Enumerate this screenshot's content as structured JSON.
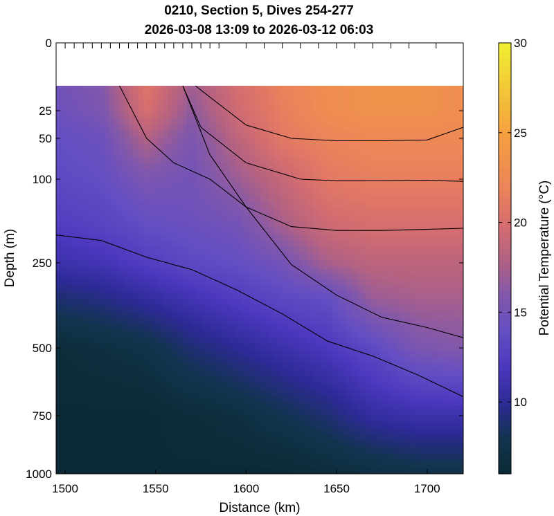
{
  "chart_data": {
    "type": "heatmap",
    "title": [
      "0210, Section 5, Dives 254-277",
      "2026-03-08 13:09 to 2026-03-12 06:03"
    ],
    "xlabel": "Distance (km)",
    "ylabel": "Depth (m)",
    "xlim": [
      1495,
      1720
    ],
    "x_ticks": [
      1500,
      1550,
      1600,
      1650,
      1700
    ],
    "y_scale": "stretched (0 at top, 1000 at bottom)",
    "y_ticks": [
      0,
      25,
      50,
      100,
      250,
      500,
      750,
      1000
    ],
    "dive_markers": [
      1500,
      1505,
      1510,
      1515,
      1520,
      1525,
      1530,
      1535,
      1540,
      1545,
      1550,
      1555,
      1560,
      1565,
      1570,
      1575,
      1580,
      1585,
      1600,
      1610,
      1620,
      1630,
      1640,
      1650,
      1660,
      1670,
      1680,
      1690,
      1705
    ],
    "data_top_depth": 12,
    "colorbar": {
      "label": "Potential Temperature (°C)",
      "range": [
        6,
        30
      ],
      "ticks": [
        10,
        15,
        20,
        25,
        30
      ]
    },
    "colors": {
      "cold": "#0c2a35",
      "mid": "#4b36b8",
      "warm": "#d96b6b",
      "hot": "#f5a040",
      "max": "#f0f030"
    },
    "temperature_field": {
      "x": [
        1495,
        1520,
        1545,
        1570,
        1595,
        1620,
        1645,
        1670,
        1695,
        1720
      ],
      "depth": [
        12,
        25,
        50,
        100,
        180,
        250,
        350,
        500,
        750,
        1000
      ],
      "values": [
        [
          15.0,
          16.0,
          21.0,
          17.5,
          20.0,
          22.0,
          23.0,
          23.5,
          23.5,
          23.0
        ],
        [
          14.5,
          15.5,
          20.0,
          16.5,
          19.5,
          21.5,
          23.0,
          23.5,
          23.5,
          23.0
        ],
        [
          14.0,
          14.5,
          18.0,
          15.5,
          18.5,
          21.0,
          22.0,
          22.5,
          22.5,
          22.5
        ],
        [
          13.5,
          14.0,
          15.5,
          15.0,
          17.0,
          19.0,
          21.0,
          21.5,
          21.5,
          21.5
        ],
        [
          12.5,
          13.0,
          14.0,
          14.5,
          15.0,
          17.5,
          19.5,
          20.0,
          20.0,
          20.0
        ],
        [
          11.0,
          11.5,
          12.5,
          13.5,
          14.0,
          15.0,
          17.5,
          18.5,
          18.5,
          18.5
        ],
        [
          9.0,
          9.5,
          10.5,
          11.5,
          12.5,
          13.5,
          14.0,
          17.0,
          17.5,
          17.5
        ],
        [
          6.5,
          7.0,
          7.5,
          9.0,
          10.0,
          11.0,
          12.0,
          13.5,
          15.5,
          16.0
        ],
        [
          6.0,
          6.0,
          6.0,
          6.5,
          7.0,
          8.0,
          9.0,
          10.5,
          11.0,
          11.0
        ],
        [
          6.0,
          6.0,
          6.0,
          6.0,
          6.0,
          6.0,
          6.5,
          7.0,
          7.5,
          7.5
        ]
      ]
    },
    "contours": [
      {
        "level": 22,
        "x": [
          1572,
          1580,
          1600,
          1625,
          1650,
          1675,
          1700,
          1720
        ],
        "depth": [
          12,
          20,
          38,
          50,
          53,
          53,
          52,
          40
        ]
      },
      {
        "level": 20,
        "x": [
          1565,
          1575,
          1600,
          1630,
          1650,
          1675,
          1700,
          1720
        ],
        "depth": [
          12,
          40,
          80,
          100,
          103,
          103,
          102,
          104
        ]
      },
      {
        "level": 18,
        "x": [
          1565,
          1580,
          1600,
          1625,
          1650,
          1675,
          1700,
          1720
        ],
        "depth": [
          12,
          70,
          150,
          185,
          192,
          192,
          190,
          188
        ]
      },
      {
        "level": 16,
        "x": [
          1530,
          1545,
          1560,
          1580,
          1600,
          1625,
          1650,
          1675,
          1700,
          1720
        ],
        "depth": [
          12,
          50,
          80,
          100,
          150,
          255,
          345,
          410,
          440,
          470
        ]
      },
      {
        "level": 14,
        "x": [
          1495,
          1520,
          1545,
          1570,
          1595,
          1620,
          1645,
          1670,
          1695,
          1720
        ],
        "depth": [
          200,
          210,
          240,
          270,
          330,
          400,
          480,
          530,
          600,
          680
        ]
      }
    ]
  }
}
